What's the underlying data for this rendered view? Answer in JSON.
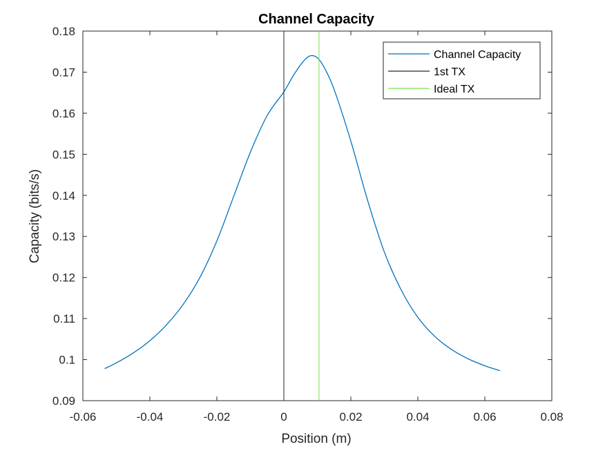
{
  "chart_data": {
    "type": "line",
    "title": "Channel Capacity",
    "xlabel": "Position (m)",
    "ylabel": "Capacity (bits/s)",
    "xlim": [
      -0.06,
      0.08
    ],
    "ylim": [
      0.09,
      0.18
    ],
    "x_ticks": [
      -0.06,
      -0.04,
      -0.02,
      0,
      0.02,
      0.04,
      0.06,
      0.08
    ],
    "x_tick_labels": [
      "-0.06",
      "-0.04",
      "-0.02",
      "0",
      "0.02",
      "0.04",
      "0.06",
      "0.08"
    ],
    "y_ticks": [
      0.09,
      0.1,
      0.11,
      0.12,
      0.13,
      0.14,
      0.15,
      0.16,
      0.17,
      0.18
    ],
    "y_tick_labels": [
      "0.09",
      "0.1",
      "0.11",
      "0.12",
      "0.13",
      "0.14",
      "0.15",
      "0.16",
      "0.17",
      "0.18"
    ],
    "grid": false,
    "legend_position": "top-right",
    "series": [
      {
        "name": "Channel Capacity",
        "kind": "curve",
        "color": "#0072BD",
        "x": [
          -0.0535,
          -0.05,
          -0.045,
          -0.04,
          -0.035,
          -0.03,
          -0.025,
          -0.02,
          -0.015,
          -0.01,
          -0.005,
          0,
          0.003,
          0.006,
          0.008,
          0.01,
          0.012,
          0.015,
          0.02,
          0.025,
          0.03,
          0.035,
          0.04,
          0.045,
          0.05,
          0.055,
          0.06,
          0.0645
        ],
        "y": [
          0.0978,
          0.0992,
          0.1016,
          0.1046,
          0.1085,
          0.1135,
          0.1201,
          0.1289,
          0.1397,
          0.1505,
          0.1594,
          0.1652,
          0.1694,
          0.1728,
          0.174,
          0.1735,
          0.1712,
          0.1658,
          0.1532,
          0.1388,
          0.1262,
          0.117,
          0.1103,
          0.1057,
          0.1025,
          0.1002,
          0.0985,
          0.0973
        ]
      },
      {
        "name": "1st TX",
        "kind": "vline",
        "color": "#262626",
        "x": 0
      },
      {
        "name": "Ideal TX",
        "kind": "vline",
        "color": "#77E24A",
        "x": 0.0105
      }
    ]
  }
}
